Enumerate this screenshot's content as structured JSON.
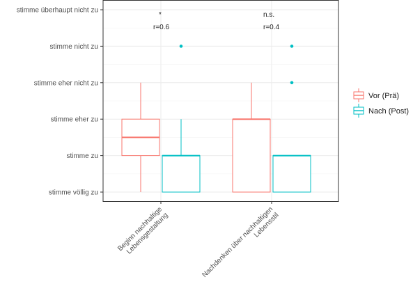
{
  "chart_data": {
    "type": "boxplot",
    "title": "",
    "xlabel": "",
    "ylabel": "",
    "y_levels": [
      "stimme völlig zu",
      "stimme zu",
      "stimme eher zu",
      "stimme eher nicht zu",
      "stimme nicht zu",
      "stimme überhaupt nicht zu"
    ],
    "ylim": [
      1,
      6
    ],
    "categories": [
      "Beginn nachhaltige Lebensgestaltung",
      "Nachdenken über nachhaltigen Lebensstil"
    ],
    "category_label_lines": [
      [
        "Beginn nachhaltige",
        "Lebensgestaltung"
      ],
      [
        "Nachdenken über nachhaltigen",
        "Lebensstil"
      ]
    ],
    "grid": true,
    "legend_position": "right",
    "series": [
      {
        "name": "Vor (Prä)",
        "color": "#F8766D",
        "boxes": [
          {
            "min": 1,
            "q1": 2,
            "median": 2.5,
            "q3": 3,
            "max": 4,
            "outliers": []
          },
          {
            "min": 1,
            "q1": 1,
            "median": 3,
            "q3": 3,
            "max": 4,
            "outliers": []
          }
        ]
      },
      {
        "name": "Nach (Post)",
        "color": "#00BFC4",
        "boxes": [
          {
            "min": 1,
            "q1": 1,
            "median": 2,
            "q3": 2,
            "max": 3,
            "outliers": [
              5
            ]
          },
          {
            "min": 1,
            "q1": 1,
            "median": 2,
            "q3": 2,
            "max": 2,
            "outliers": [
              4,
              5
            ]
          }
        ]
      }
    ],
    "annotations": [
      {
        "category": "Beginn nachhaltige Lebensgestaltung",
        "significance": "*",
        "effect": "r=0.6"
      },
      {
        "category": "Nachdenken über nachhaltigen Lebensstil",
        "significance": "n.s.",
        "effect": "r=0.4"
      }
    ]
  }
}
